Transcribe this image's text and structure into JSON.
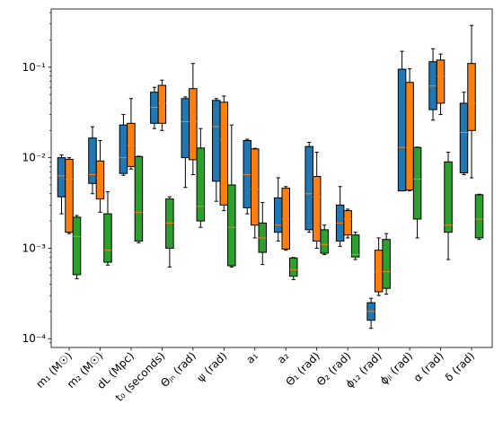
{
  "chart_data": {
    "type": "box",
    "log_scale": true,
    "categories": [
      "m₁ (M☉)",
      "m₂ (M☉)",
      "dL (Mpc)",
      "t₀ (seconds)",
      "Θⱼₙ (rad)",
      "ψ (rad)",
      "a₁",
      "a₂",
      "Θ₁ (rad)",
      "Θ₂ (rad)",
      "ϕ₁₂ (rad)",
      "ϕⱼₗ (rad)",
      "α (rad)",
      "δ (rad)"
    ],
    "ylim": [
      8e-05,
      0.44
    ],
    "yticks": [
      {
        "value": 0.0001,
        "label": "10⁻⁴"
      },
      {
        "value": 0.001,
        "label": "10⁻³"
      },
      {
        "value": 0.01,
        "label": "10⁻²"
      },
      {
        "value": 0.1,
        "label": "10⁻¹"
      }
    ],
    "yticks_minor": [
      9e-05,
      0.0002,
      0.0003,
      0.0004,
      0.0005,
      0.0006,
      0.0007,
      0.0008,
      0.0009,
      0.002,
      0.003,
      0.004,
      0.005,
      0.006,
      0.007,
      0.008,
      0.009,
      0.02,
      0.03,
      0.04,
      0.05,
      0.06,
      0.07,
      0.08,
      0.09,
      0.2,
      0.3,
      0.4
    ],
    "median_color": "#ff7f0e",
    "series": [
      {
        "color": "#1f77b4",
        "values": [
          [
            0.0024,
            0.0037,
            0.0063,
            0.01,
            0.0107
          ],
          [
            0.004,
            0.0052,
            0.0065,
            0.0165,
            0.022
          ],
          [
            0.0064,
            0.0067,
            0.01,
            0.023,
            0.03
          ],
          [
            0.021,
            0.024,
            0.036,
            0.053,
            0.06
          ],
          [
            0.0047,
            0.01,
            0.025,
            0.045,
            0.047
          ],
          [
            0.0033,
            0.0055,
            0.022,
            0.043,
            0.045
          ],
          [
            0.0024,
            0.0028,
            0.0065,
            0.0155,
            0.016
          ],
          [
            0.0012,
            0.0015,
            0.0018,
            0.0036,
            0.006
          ],
          [
            0.0015,
            0.0016,
            0.004,
            0.0133,
            0.0148
          ],
          [
            0.00105,
            0.0012,
            0.0019,
            0.003,
            0.0048
          ],
          [
            0.00013,
            0.00016,
            0.0002,
            0.00025,
            0.00028
          ],
          [
            0.0043,
            0.0043,
            0.013,
            0.095,
            0.15
          ],
          [
            0.026,
            0.034,
            0.062,
            0.115,
            0.16
          ],
          [
            0.0065,
            0.0068,
            0.019,
            0.04,
            0.053
          ]
        ]
      },
      {
        "color": "#ff7f0e",
        "values": [
          [
            0.00145,
            0.0015,
            0.0058,
            0.0096,
            0.01
          ],
          [
            0.0025,
            0.0035,
            0.006,
            0.0092,
            0.0155
          ],
          [
            0.0075,
            0.008,
            0.0135,
            0.024,
            0.045
          ],
          [
            0.02,
            0.024,
            0.04,
            0.063,
            0.072
          ],
          [
            0.0065,
            0.0095,
            0.025,
            0.058,
            0.11
          ],
          [
            0.0026,
            0.003,
            0.016,
            0.041,
            0.048
          ],
          [
            0.0013,
            0.0018,
            0.0045,
            0.0125,
            0.0127
          ],
          [
            0.00095,
            0.00098,
            0.0021,
            0.0046,
            0.0048
          ],
          [
            0.001,
            0.0012,
            0.0037,
            0.0062,
            0.0115
          ],
          [
            0.0013,
            0.0014,
            0.0021,
            0.0026,
            0.0027
          ],
          [
            0.0003,
            0.00033,
            0.00055,
            0.00095,
            0.0013
          ],
          [
            0.0043,
            0.0044,
            0.013,
            0.068,
            0.096
          ],
          [
            0.03,
            0.04,
            0.08,
            0.12,
            0.14
          ],
          [
            0.006,
            0.02,
            0.04,
            0.11,
            0.29
          ]
        ]
      },
      {
        "color": "#2ca02c",
        "values": [
          [
            0.00046,
            0.00051,
            0.00135,
            0.0022,
            0.0023
          ],
          [
            0.00065,
            0.0007,
            0.00095,
            0.0024,
            0.0042
          ],
          [
            0.00115,
            0.0012,
            0.0025,
            0.0103,
            0.0104
          ],
          [
            0.00062,
            0.001,
            0.0019,
            0.0035,
            0.0037
          ],
          [
            0.0017,
            0.002,
            0.0029,
            0.0128,
            0.021
          ],
          [
            0.00062,
            0.00064,
            0.0017,
            0.005,
            0.023
          ],
          [
            0.00066,
            0.0009,
            0.0013,
            0.0019,
            0.0032
          ],
          [
            0.00045,
            0.00049,
            0.00058,
            0.00078,
            0.00079
          ],
          [
            0.00085,
            0.00088,
            0.0011,
            0.0016,
            0.0018
          ],
          [
            0.00075,
            0.0008,
            0.00085,
            0.0014,
            0.0015
          ],
          [
            0.00031,
            0.00036,
            0.00055,
            0.00125,
            0.00145
          ],
          [
            0.0013,
            0.0021,
            0.0058,
            0.013,
            0.0131
          ],
          [
            0.00075,
            0.0015,
            0.0018,
            0.009,
            0.0115
          ],
          [
            0.00125,
            0.0013,
            0.0021,
            0.0039,
            0.00395
          ]
        ]
      }
    ]
  }
}
